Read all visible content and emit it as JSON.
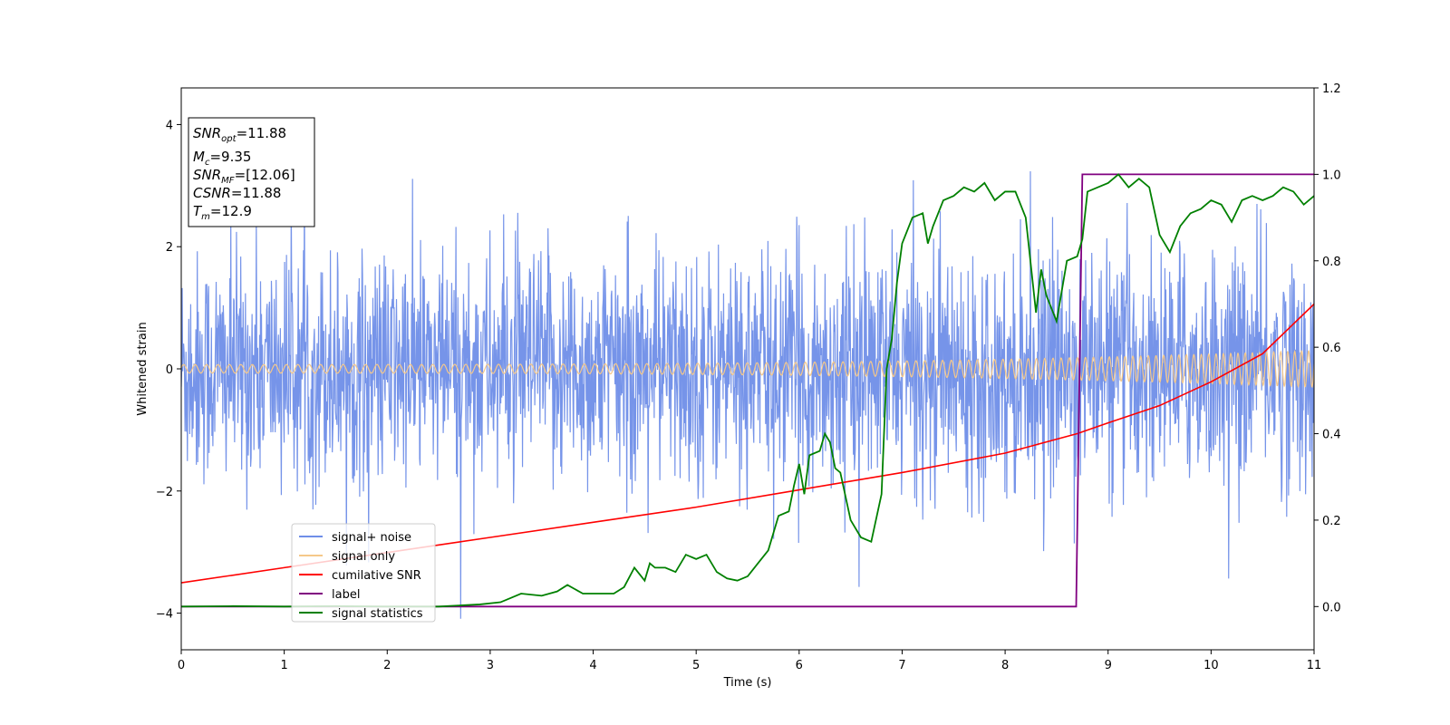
{
  "chart_data": {
    "type": "line",
    "xlabel": "Time (s)",
    "ylabel": "Whitened strain",
    "xlim": [
      0,
      11
    ],
    "ylim_left": [
      -4.6,
      4.6
    ],
    "ylim_right": [
      -0.1,
      1.2
    ],
    "x_ticks": [
      "0",
      "1",
      "2",
      "3",
      "4",
      "5",
      "6",
      "7",
      "8",
      "9",
      "10",
      "11"
    ],
    "y_left_ticks": [
      "−4",
      "−2",
      "0",
      "2",
      "4"
    ],
    "y_right_ticks": [
      "0.0",
      "0.2",
      "0.4",
      "0.6",
      "0.8",
      "1.0",
      "1.2"
    ],
    "info_box": {
      "snr_opt": {
        "var": "SNR",
        "sub": "opt",
        "value": "=11.88"
      },
      "mc": {
        "var": "M",
        "sub": "c",
        "value": "=9.35"
      },
      "snr_mf": {
        "var": "SNR",
        "sub": "MF",
        "value": "=[12.06]"
      },
      "csnr": {
        "var": "CSNR",
        "sub": "",
        "value": "=11.88"
      },
      "tm": {
        "var": "T",
        "sub": "m",
        "value": "=12.9"
      }
    },
    "legend": {
      "placement": "lower-left",
      "entries": [
        {
          "label": "signal+ noise",
          "color": "#6f8ee8"
        },
        {
          "label": "signal only",
          "color": "#f5c88a"
        },
        {
          "label": "cumilative SNR",
          "color": "#ff0000"
        },
        {
          "label": "label",
          "color": "#800080"
        },
        {
          "label": "signal statistics",
          "color": "#008000"
        }
      ]
    },
    "series": [
      {
        "name": "signal+ noise",
        "axis": "left",
        "description_of_envelope": "noise with typical amplitude ±2, spikes to ±4",
        "envelope_std": 0.95,
        "color": "#6f8ee8"
      },
      {
        "name": "signal only",
        "axis": "left",
        "amplitude_start": 0.07,
        "amplitude_end": 0.3,
        "color": "#f5c88a"
      },
      {
        "name": "cumilative SNR",
        "axis": "right",
        "x": [
          0,
          1,
          2,
          3,
          4,
          5,
          6,
          7,
          8,
          8.7,
          9,
          9.5,
          10,
          10.5,
          11
        ],
        "y": [
          0.055,
          0.09,
          0.125,
          0.16,
          0.195,
          0.23,
          0.27,
          0.31,
          0.355,
          0.4,
          0.425,
          0.465,
          0.52,
          0.585,
          0.7
        ],
        "color": "#ff0000"
      },
      {
        "name": "label",
        "axis": "right",
        "x": [
          0,
          8.69,
          8.75,
          11
        ],
        "y": [
          0,
          0,
          1,
          1
        ],
        "color": "#800080"
      },
      {
        "name": "signal statistics",
        "axis": "right",
        "x": [
          0,
          0.5,
          1,
          1.5,
          2,
          2.5,
          2.9,
          3.1,
          3.2,
          3.3,
          3.5,
          3.65,
          3.75,
          3.9,
          4,
          4.2,
          4.3,
          4.4,
          4.5,
          4.55,
          4.6,
          4.7,
          4.8,
          4.9,
          5.0,
          5.1,
          5.2,
          5.3,
          5.4,
          5.5,
          5.6,
          5.7,
          5.8,
          5.9,
          5.95,
          6.0,
          6.05,
          6.1,
          6.2,
          6.25,
          6.3,
          6.35,
          6.4,
          6.5,
          6.6,
          6.7,
          6.8,
          6.85,
          6.9,
          6.95,
          7.0,
          7.1,
          7.2,
          7.25,
          7.3,
          7.4,
          7.5,
          7.6,
          7.7,
          7.8,
          7.9,
          8.0,
          8.1,
          8.2,
          8.3,
          8.35,
          8.4,
          8.5,
          8.6,
          8.7,
          8.75,
          8.8,
          8.9,
          9.0,
          9.1,
          9.2,
          9.3,
          9.4,
          9.5,
          9.6,
          9.7,
          9.8,
          9.9,
          10.0,
          10.1,
          10.2,
          10.3,
          10.4,
          10.5,
          10.6,
          10.7,
          10.8,
          10.9,
          11.0
        ],
        "y": [
          0.0,
          0.001,
          0.0,
          0.001,
          0.0,
          0.0,
          0.005,
          0.01,
          0.02,
          0.03,
          0.025,
          0.035,
          0.05,
          0.03,
          0.03,
          0.03,
          0.045,
          0.09,
          0.06,
          0.1,
          0.09,
          0.09,
          0.08,
          0.12,
          0.11,
          0.12,
          0.08,
          0.065,
          0.06,
          0.07,
          0.1,
          0.13,
          0.21,
          0.22,
          0.28,
          0.33,
          0.26,
          0.35,
          0.36,
          0.4,
          0.38,
          0.32,
          0.31,
          0.2,
          0.16,
          0.15,
          0.26,
          0.55,
          0.62,
          0.75,
          0.84,
          0.9,
          0.91,
          0.84,
          0.88,
          0.94,
          0.95,
          0.97,
          0.96,
          0.98,
          0.94,
          0.96,
          0.96,
          0.9,
          0.68,
          0.78,
          0.72,
          0.66,
          0.8,
          0.81,
          0.85,
          0.96,
          0.97,
          0.98,
          1.0,
          0.97,
          0.99,
          0.97,
          0.86,
          0.82,
          0.88,
          0.91,
          0.92,
          0.94,
          0.93,
          0.89,
          0.94,
          0.95,
          0.94,
          0.95,
          0.97,
          0.96,
          0.93,
          0.95
        ],
        "color": "#008000"
      }
    ]
  }
}
